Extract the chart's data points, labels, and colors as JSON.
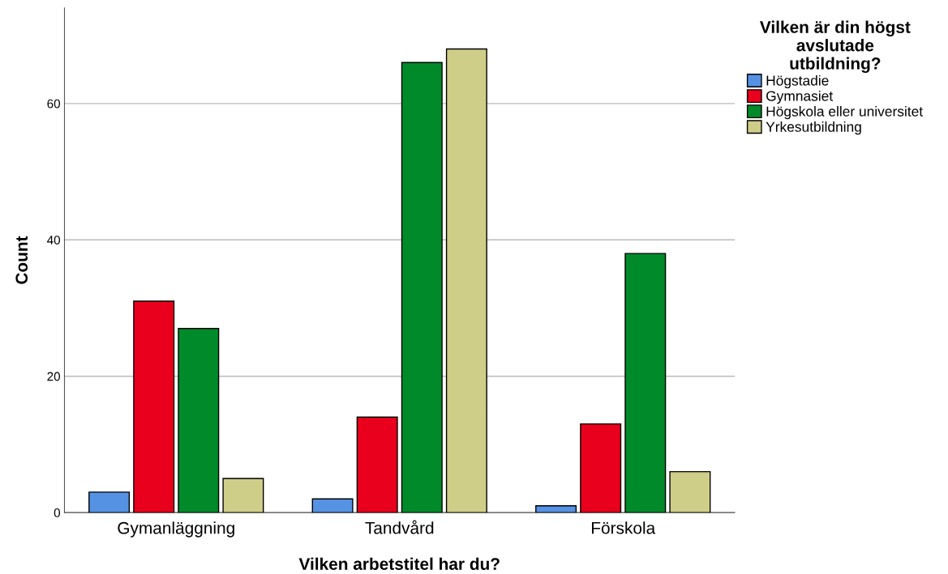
{
  "chart_data": {
    "type": "bar",
    "xlabel": "Vilken arbetstitel har du?",
    "ylabel": "Count",
    "legend_title": "Vilken är din högst\navslutade\nutbildning?",
    "categories": [
      "Gymanläggning",
      "Tandvård",
      "Förskola"
    ],
    "series": [
      {
        "name": "Högstadie",
        "color": "#5692e4",
        "values": [
          3,
          2,
          1
        ]
      },
      {
        "name": "Gymnasiet",
        "color": "#e8001c",
        "values": [
          31,
          14,
          13
        ]
      },
      {
        "name": "Högskola eller universitet",
        "color": "#008a2a",
        "values": [
          27,
          66,
          38
        ]
      },
      {
        "name": "Yrkesutbildning",
        "color": "#cfce88",
        "values": [
          5,
          68,
          6
        ]
      }
    ],
    "ylim": [
      0,
      74
    ],
    "yticks": [
      0,
      20,
      40,
      60
    ],
    "grid": "y",
    "legend": "top right"
  }
}
